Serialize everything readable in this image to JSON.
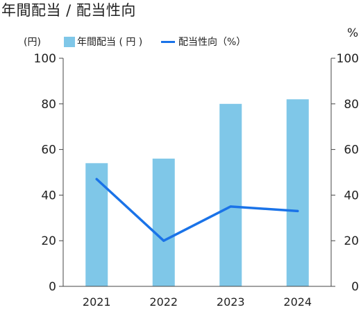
{
  "title": "年間配当 / 配当性向",
  "chart_data": {
    "type": "bar",
    "categories": [
      "2021",
      "2022",
      "2023",
      "2024"
    ],
    "series": [
      {
        "name": "年間配当(円)",
        "type": "bar",
        "axis": "left",
        "values": [
          54,
          56,
          80,
          82
        ],
        "color": "#7fc7e8"
      },
      {
        "name": "配当性向(%)",
        "type": "line",
        "axis": "right",
        "values": [
          47,
          20,
          35,
          33
        ],
        "color": "#1a73e8"
      }
    ],
    "left_axis": {
      "unit_label": "(円)",
      "ylim": [
        0,
        100
      ],
      "ticks": [
        "0",
        "20",
        "40",
        "60",
        "80",
        "100"
      ]
    },
    "right_axis": {
      "unit_label": "%",
      "ylim": [
        0,
        100
      ],
      "ticks": [
        "0",
        "20",
        "40",
        "60",
        "80",
        "100"
      ]
    },
    "legend_position": "top",
    "grid": false
  },
  "legend": {
    "left_unit": "(円)",
    "bar_label": "年間配当 ( 円 )",
    "line_label": "配当性向（%）",
    "right_unit": "%"
  }
}
